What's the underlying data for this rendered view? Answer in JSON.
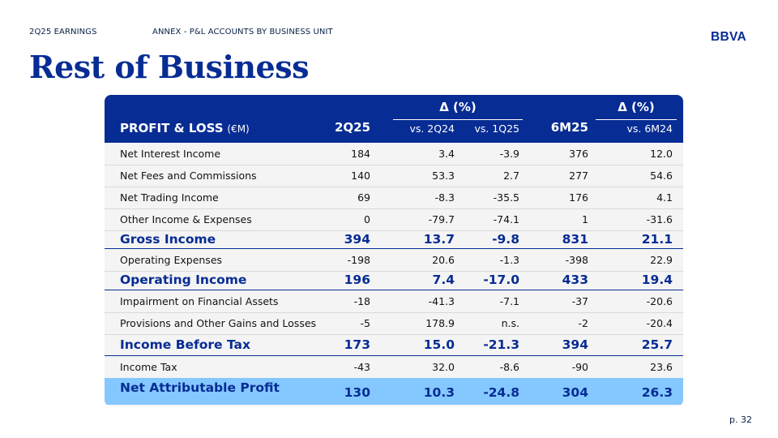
{
  "header": {
    "section": "2Q25 EARNINGS",
    "subsection": "ANNEX - P&L ACCOUNTS BY BUSINESS UNIT",
    "logo_text": "BBVA"
  },
  "title": "Rest of Business",
  "table": {
    "pl_label": "PROFIT & LOSS",
    "pl_unit": "(€M)",
    "delta_label_1": "Δ (%)",
    "delta_label_2": "Δ (%)",
    "columns": {
      "c2q25": "2Q25",
      "vs2q24": "vs. 2Q24",
      "vs1q25": "vs. 1Q25",
      "c6m25": "6M25",
      "vs6m24": "vs. 6M24"
    },
    "rows": [
      {
        "label": "Net Interest Income",
        "q": "184",
        "d1": "3.4",
        "d2": "-3.9",
        "h": "376",
        "d3": "12.0"
      },
      {
        "label": "Net Fees and Commissions",
        "q": "140",
        "d1": "53.3",
        "d2": "2.7",
        "h": "277",
        "d3": "54.6"
      },
      {
        "label": "Net Trading Income",
        "q": "69",
        "d1": "-8.3",
        "d2": "-35.5",
        "h": "176",
        "d3": "4.1"
      },
      {
        "label": "Other Income & Expenses",
        "q": "0",
        "d1": "-79.7",
        "d2": "-74.1",
        "h": "1",
        "d3": "-31.6"
      },
      {
        "label": "Gross Income",
        "q": "394",
        "d1": "13.7",
        "d2": "-9.8",
        "h": "831",
        "d3": "21.1"
      },
      {
        "label": "Operating Expenses",
        "q": "-198",
        "d1": "20.6",
        "d2": "-1.3",
        "h": "-398",
        "d3": "22.9"
      },
      {
        "label": "Operating Income",
        "q": "196",
        "d1": "7.4",
        "d2": "-17.0",
        "h": "433",
        "d3": "19.4"
      },
      {
        "label": "Impairment on Financial Assets",
        "q": "-18",
        "d1": "-41.3",
        "d2": "-7.1",
        "h": "-37",
        "d3": "-20.6"
      },
      {
        "label": "Provisions and Other Gains and Losses",
        "q": "-5",
        "d1": "178.9",
        "d2": "n.s.",
        "h": "-2",
        "d3": "-20.4"
      },
      {
        "label": "Income Before Tax",
        "q": "173",
        "d1": "15.0",
        "d2": "-21.3",
        "h": "394",
        "d3": "25.7"
      },
      {
        "label": "Income Tax",
        "q": "-43",
        "d1": "32.0",
        "d2": "-8.6",
        "h": "-90",
        "d3": "23.6"
      },
      {
        "label": "Net Attributable Profit",
        "q": "130",
        "d1": "10.3",
        "d2": "-24.8",
        "h": "304",
        "d3": "26.3"
      }
    ]
  },
  "footer": {
    "page": "p. 32"
  },
  "colors": {
    "brand": "#072c94",
    "highlight": "#85c8ff",
    "panel": "#f4f4f4"
  }
}
